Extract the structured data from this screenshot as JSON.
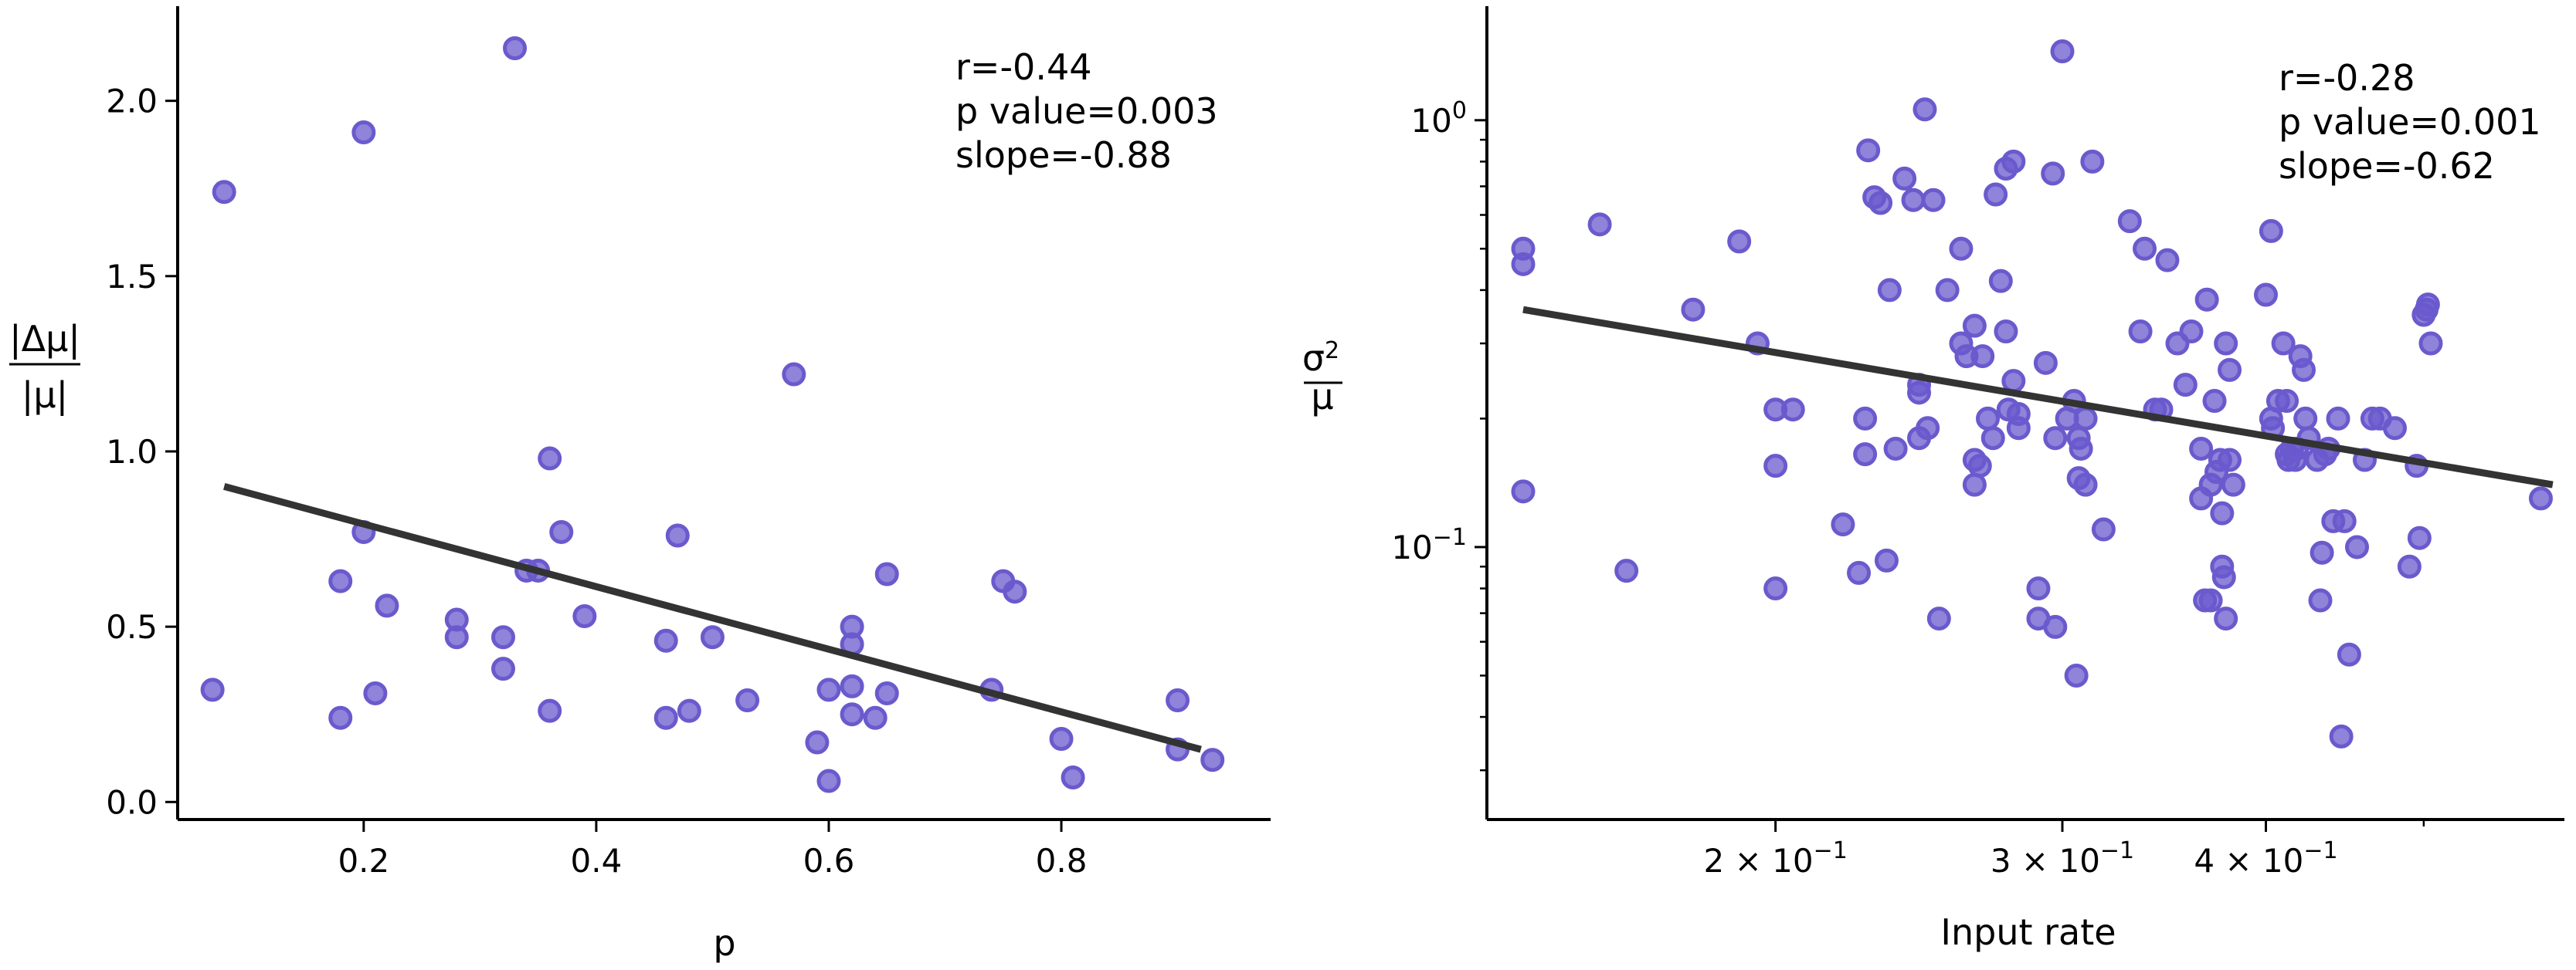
{
  "chart_data": [
    {
      "type": "scatter",
      "xscale": "linear",
      "yscale": "linear",
      "xlim": [
        0.04,
        0.98
      ],
      "ylim": [
        -0.05,
        2.27
      ],
      "xticks": [
        0.2,
        0.4,
        0.6,
        0.8
      ],
      "xtick_labels": [
        "0.2",
        "0.4",
        "0.6",
        "0.8"
      ],
      "yticks": [
        0.0,
        0.5,
        1.0,
        1.5,
        2.0
      ],
      "ytick_labels": [
        "0.0",
        "0.5",
        "1.0",
        "1.5",
        "2.0"
      ],
      "xlabel": "p",
      "ylabel_num": "|Δμ|",
      "ylabel_den": "|μ|",
      "annotation": [
        "r=-0.44",
        "p value=0.003",
        "slope=-0.88"
      ],
      "point_color": "#6a5acd",
      "line_color": "#333333",
      "fit_line": {
        "x": [
          0.08,
          0.92
        ],
        "y": [
          0.9,
          0.15
        ]
      },
      "points": [
        [
          0.07,
          0.32
        ],
        [
          0.08,
          1.74
        ],
        [
          0.18,
          0.63
        ],
        [
          0.18,
          0.24
        ],
        [
          0.2,
          1.91
        ],
        [
          0.2,
          0.77
        ],
        [
          0.21,
          0.31
        ],
        [
          0.22,
          0.56
        ],
        [
          0.28,
          0.52
        ],
        [
          0.28,
          0.47
        ],
        [
          0.32,
          0.47
        ],
        [
          0.32,
          0.38
        ],
        [
          0.33,
          2.15
        ],
        [
          0.34,
          0.66
        ],
        [
          0.35,
          0.66
        ],
        [
          0.36,
          0.26
        ],
        [
          0.36,
          0.98
        ],
        [
          0.37,
          0.77
        ],
        [
          0.39,
          0.53
        ],
        [
          0.46,
          0.24
        ],
        [
          0.46,
          0.46
        ],
        [
          0.47,
          0.76
        ],
        [
          0.48,
          0.26
        ],
        [
          0.5,
          0.47
        ],
        [
          0.53,
          0.29
        ],
        [
          0.57,
          1.22
        ],
        [
          0.59,
          0.17
        ],
        [
          0.6,
          0.06
        ],
        [
          0.6,
          0.32
        ],
        [
          0.62,
          0.25
        ],
        [
          0.62,
          0.45
        ],
        [
          0.62,
          0.5
        ],
        [
          0.62,
          0.33
        ],
        [
          0.64,
          0.24
        ],
        [
          0.65,
          0.31
        ],
        [
          0.65,
          0.65
        ],
        [
          0.74,
          0.32
        ],
        [
          0.75,
          0.63
        ],
        [
          0.76,
          0.6
        ],
        [
          0.8,
          0.18
        ],
        [
          0.81,
          0.07
        ],
        [
          0.9,
          0.29
        ],
        [
          0.9,
          0.15
        ],
        [
          0.93,
          0.12
        ]
      ]
    },
    {
      "type": "scatter",
      "xscale": "log",
      "yscale": "log",
      "xlim": [
        0.133,
        0.61
      ],
      "ylim": [
        0.023,
        1.85
      ],
      "xticks": [
        0.2,
        0.3,
        0.4
      ],
      "xtick_labels": [
        "2 × 10",
        "3 × 10",
        "4 × 10"
      ],
      "xtick_exponent": "−1",
      "x_minor_ticks": [
        0.5
      ],
      "yticks": [
        0.1,
        1.0
      ],
      "ytick_bases": [
        "10",
        "10"
      ],
      "ytick_exponents": [
        "−1",
        "0"
      ],
      "y_minor_ticks": [
        0.03,
        0.04,
        0.05,
        0.06,
        0.07,
        0.08,
        0.09,
        0.2,
        0.3,
        0.4,
        0.5,
        0.6,
        0.7,
        0.8,
        0.9
      ],
      "xlabel": "Input rate",
      "ylabel_num": "σ",
      "ylabel_num_sup": "2",
      "ylabel_den": "μ",
      "annotation": [
        "r=-0.28",
        "p value=0.001",
        "slope=-0.62"
      ],
      "point_color": "#6a5acd",
      "line_color": "#333333",
      "fit_line": {
        "x": [
          0.14,
          0.6
        ],
        "y": [
          0.36,
          0.14
        ]
      },
      "points": [
        [
          0.14,
          0.5
        ],
        [
          0.14,
          0.46
        ],
        [
          0.14,
          0.135
        ],
        [
          0.156,
          0.57
        ],
        [
          0.162,
          0.088
        ],
        [
          0.178,
          0.36
        ],
        [
          0.19,
          0.52
        ],
        [
          0.195,
          0.3
        ],
        [
          0.2,
          0.21
        ],
        [
          0.2,
          0.155
        ],
        [
          0.2,
          0.08
        ],
        [
          0.205,
          0.21
        ],
        [
          0.22,
          0.113
        ],
        [
          0.225,
          0.087
        ],
        [
          0.227,
          0.2
        ],
        [
          0.227,
          0.165
        ],
        [
          0.228,
          0.85
        ],
        [
          0.23,
          0.66
        ],
        [
          0.232,
          0.64
        ],
        [
          0.234,
          0.093
        ],
        [
          0.235,
          0.4
        ],
        [
          0.237,
          0.17
        ],
        [
          0.24,
          0.73
        ],
        [
          0.243,
          0.65
        ],
        [
          0.245,
          0.23
        ],
        [
          0.245,
          0.24
        ],
        [
          0.245,
          0.18
        ],
        [
          0.247,
          1.06
        ],
        [
          0.248,
          0.19
        ],
        [
          0.25,
          0.65
        ],
        [
          0.252,
          0.068
        ],
        [
          0.255,
          0.4
        ],
        [
          0.26,
          0.5
        ],
        [
          0.26,
          0.3
        ],
        [
          0.262,
          0.28
        ],
        [
          0.265,
          0.33
        ],
        [
          0.265,
          0.16
        ],
        [
          0.265,
          0.14
        ],
        [
          0.267,
          0.155
        ],
        [
          0.268,
          0.28
        ],
        [
          0.27,
          0.2
        ],
        [
          0.272,
          0.18
        ],
        [
          0.273,
          0.67
        ],
        [
          0.275,
          0.42
        ],
        [
          0.277,
          0.32
        ],
        [
          0.277,
          0.77
        ],
        [
          0.278,
          0.21
        ],
        [
          0.28,
          0.245
        ],
        [
          0.28,
          0.8
        ],
        [
          0.282,
          0.19
        ],
        [
          0.282,
          0.205
        ],
        [
          0.29,
          0.08
        ],
        [
          0.29,
          0.068
        ],
        [
          0.293,
          0.27
        ],
        [
          0.296,
          0.75
        ],
        [
          0.297,
          0.065
        ],
        [
          0.297,
          0.18
        ],
        [
          0.3,
          1.45
        ],
        [
          0.302,
          0.2
        ],
        [
          0.305,
          0.22
        ],
        [
          0.306,
          0.05
        ],
        [
          0.307,
          0.18
        ],
        [
          0.307,
          0.145
        ],
        [
          0.308,
          0.17
        ],
        [
          0.31,
          0.14
        ],
        [
          0.31,
          0.2
        ],
        [
          0.313,
          0.8
        ],
        [
          0.318,
          0.11
        ],
        [
          0.33,
          0.58
        ],
        [
          0.335,
          0.32
        ],
        [
          0.337,
          0.5
        ],
        [
          0.342,
          0.21
        ],
        [
          0.345,
          0.21
        ],
        [
          0.348,
          0.47
        ],
        [
          0.353,
          0.3
        ],
        [
          0.357,
          0.24
        ],
        [
          0.36,
          0.32
        ],
        [
          0.365,
          0.17
        ],
        [
          0.365,
          0.13
        ],
        [
          0.367,
          0.075
        ],
        [
          0.368,
          0.38
        ],
        [
          0.37,
          0.14
        ],
        [
          0.37,
          0.075
        ],
        [
          0.372,
          0.22
        ],
        [
          0.373,
          0.15
        ],
        [
          0.375,
          0.16
        ],
        [
          0.376,
          0.12
        ],
        [
          0.376,
          0.09
        ],
        [
          0.377,
          0.085
        ],
        [
          0.378,
          0.068
        ],
        [
          0.378,
          0.3
        ],
        [
          0.38,
          0.26
        ],
        [
          0.382,
          0.14
        ],
        [
          0.4,
          0.39
        ],
        [
          0.403,
          0.55
        ],
        [
          0.403,
          0.2
        ],
        [
          0.404,
          0.19
        ],
        [
          0.407,
          0.22
        ],
        [
          0.41,
          0.3
        ],
        [
          0.412,
          0.22
        ],
        [
          0.413,
          0.16
        ],
        [
          0.415,
          0.17
        ],
        [
          0.417,
          0.16
        ],
        [
          0.42,
          0.28
        ],
        [
          0.422,
          0.26
        ],
        [
          0.423,
          0.2
        ],
        [
          0.425,
          0.18
        ],
        [
          0.43,
          0.16
        ],
        [
          0.432,
          0.075
        ],
        [
          0.433,
          0.097
        ],
        [
          0.435,
          0.165
        ],
        [
          0.437,
          0.17
        ],
        [
          0.44,
          0.115
        ],
        [
          0.443,
          0.2
        ],
        [
          0.445,
          0.036
        ],
        [
          0.447,
          0.115
        ],
        [
          0.45,
          0.056
        ],
        [
          0.455,
          0.1
        ],
        [
          0.46,
          0.16
        ],
        [
          0.465,
          0.2
        ],
        [
          0.47,
          0.2
        ],
        [
          0.48,
          0.19
        ],
        [
          0.49,
          0.09
        ],
        [
          0.495,
          0.155
        ],
        [
          0.497,
          0.105
        ],
        [
          0.5,
          0.35
        ],
        [
          0.502,
          0.36
        ],
        [
          0.503,
          0.37
        ],
        [
          0.505,
          0.3
        ],
        [
          0.59,
          0.13
        ],
        [
          0.412,
          0.165
        ],
        [
          0.418,
          0.17
        ],
        [
          0.38,
          0.16
        ]
      ]
    }
  ]
}
